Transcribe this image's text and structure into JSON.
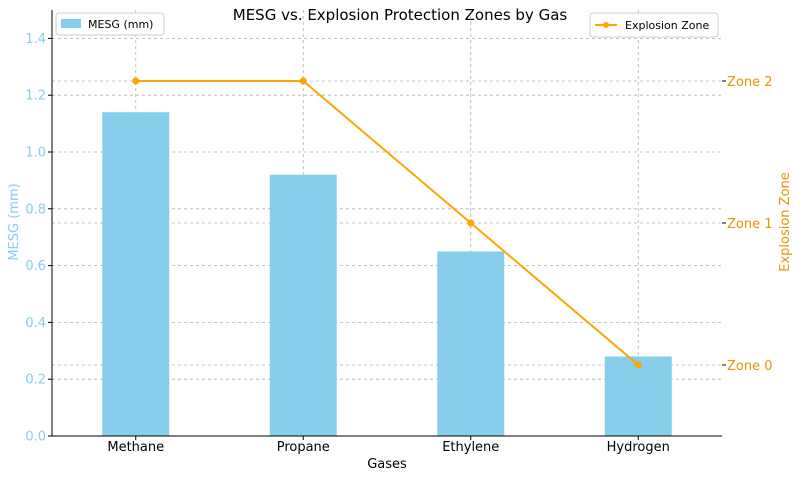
{
  "chart_data": {
    "type": "bar",
    "title": "MESG vs. Explosion Protection Zones by Gas",
    "xlabel": "Gases",
    "categories": [
      "Methane",
      "Propane",
      "Ethylene",
      "Hydrogen"
    ],
    "series": [
      {
        "name": "MESG (mm)",
        "type": "bar",
        "axis": "left",
        "values": [
          1.14,
          0.92,
          0.65,
          0.28
        ],
        "color": "#87CEEB"
      },
      {
        "name": "Explosion Zone",
        "type": "line",
        "axis": "right",
        "values": [
          2,
          2,
          1,
          0
        ],
        "color": "#FFA500"
      }
    ],
    "y_left": {
      "label": "MESG (mm)",
      "range": [
        0,
        1.5
      ],
      "ticks": [
        "0.0",
        "0.2",
        "0.4",
        "0.6",
        "0.8",
        "1.0",
        "1.2",
        "1.4"
      ],
      "color": "#87CEEB"
    },
    "y_right": {
      "label": "Explosion Zone",
      "range": [
        -0.5,
        2.5
      ],
      "tick_values": [
        0,
        1,
        2
      ],
      "tick_labels": [
        "Zone 0",
        "Zone 1",
        "Zone 2"
      ],
      "color": "#E69500"
    },
    "grid": true,
    "legends": [
      {
        "placement": "top-left",
        "entry": "MESG (mm)"
      },
      {
        "placement": "top-right",
        "entry": "Explosion Zone"
      }
    ]
  }
}
